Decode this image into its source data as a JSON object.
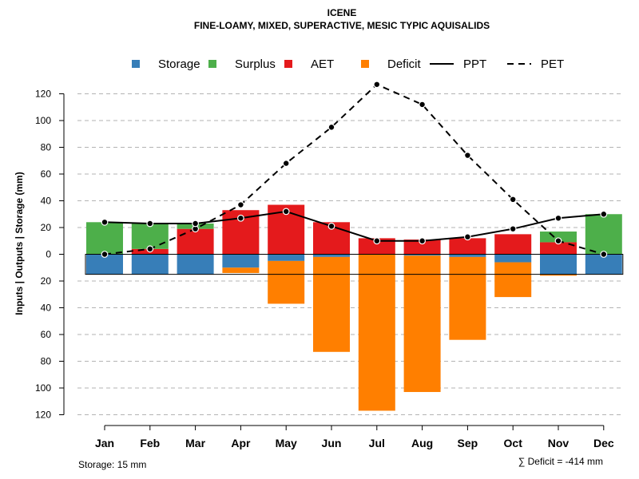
{
  "chart_data": {
    "type": "bar",
    "title": "ICENE",
    "subtitle": "FINE-LOAMY, MIXED, SUPERACTIVE, MESIC TYPIC AQUISALIDS",
    "ylabel": "Inputs | Outputs | Storage    (mm)",
    "ylim": [
      -120,
      130
    ],
    "y_ticks": [
      120,
      100,
      80,
      60,
      40,
      20,
      0,
      -20,
      -40,
      -60,
      -80,
      -100,
      -120
    ],
    "y_tick_labels": [
      "120",
      "100",
      "80",
      "60",
      "40",
      "20",
      "0",
      "20",
      "40",
      "60",
      "80",
      "100",
      "120"
    ],
    "categories": [
      "Jan",
      "Feb",
      "Mar",
      "Apr",
      "May",
      "Jun",
      "Jul",
      "Aug",
      "Sep",
      "Oct",
      "Nov",
      "Dec"
    ],
    "legend": [
      {
        "label": "Storage",
        "kind": "box",
        "color": "#377eb8"
      },
      {
        "label": "Surplus",
        "kind": "box",
        "color": "#4daf4a"
      },
      {
        "label": "AET",
        "kind": "box",
        "color": "#e41a1c"
      },
      {
        "label": "Deficit",
        "kind": "box",
        "color": "#ff7f00"
      },
      {
        "label": "PPT",
        "kind": "solid"
      },
      {
        "label": "PET",
        "kind": "dashed"
      }
    ],
    "series": [
      {
        "name": "AET",
        "color": "#e41a1c",
        "values": [
          0,
          4,
          19,
          33,
          37,
          24,
          12,
          11,
          12,
          15,
          9,
          0
        ]
      },
      {
        "name": "Surplus",
        "color": "#4daf4a",
        "values": [
          24,
          19,
          4,
          0,
          0,
          0,
          0,
          0,
          0,
          0,
          8,
          30
        ]
      },
      {
        "name": "Storage",
        "color": "#377eb8",
        "values": [
          15,
          15,
          15,
          10,
          5,
          2,
          0,
          1,
          2,
          6,
          15,
          15
        ]
      },
      {
        "name": "Deficit",
        "color": "#ff7f00",
        "values": [
          0,
          0,
          0,
          4,
          32,
          71,
          117,
          102,
          62,
          26,
          1,
          0
        ]
      },
      {
        "name": "PPT",
        "values": [
          24,
          23,
          23,
          27,
          32,
          21,
          10,
          10,
          13,
          19,
          27,
          30
        ]
      },
      {
        "name": "PET",
        "values": [
          0,
          4,
          19,
          37,
          68,
          95,
          127,
          112,
          74,
          41,
          10,
          0
        ]
      }
    ],
    "storage_capacity": 15,
    "storage_note": "Storage: 15 mm",
    "deficit_note": "∑ Deficit = -414 mm"
  }
}
